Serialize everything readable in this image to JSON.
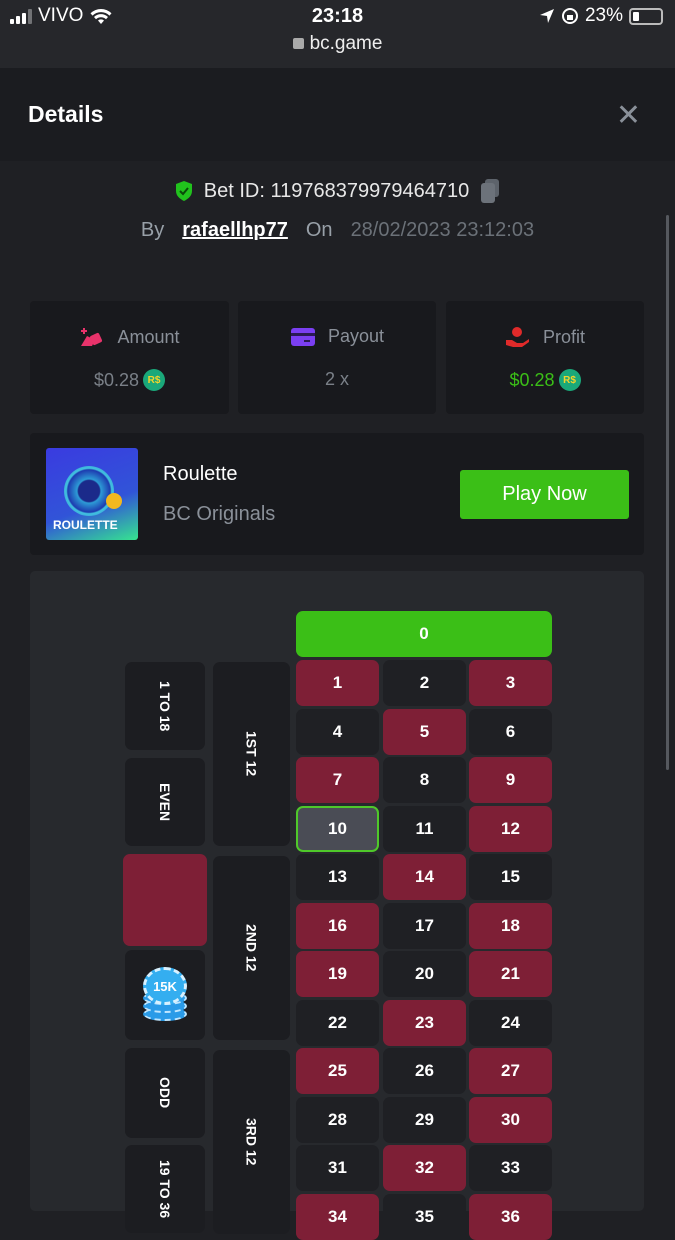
{
  "status_bar": {
    "carrier": "VIVO",
    "time": "23:18",
    "battery": "23%",
    "url": "bc.game",
    "icons": [
      "signal-icon",
      "wifi-icon",
      "location-icon",
      "rotation-lock-icon",
      "battery-icon",
      "lock-icon"
    ]
  },
  "header": {
    "title": "Details",
    "close_icon": "close-icon"
  },
  "bet": {
    "id_label": "Bet ID: 119768379979464710",
    "by_label": "By",
    "user": "rafaellhp77",
    "on_label": "On",
    "date": "28/02/2023 23:12:03"
  },
  "stats": [
    {
      "label": "Amount",
      "value": "$0.28",
      "currency": "R$",
      "icon": "bet-amount-icon",
      "color": "#e8336b",
      "value_color": "#7a8088"
    },
    {
      "label": "Payout",
      "value": "2 x",
      "icon": "card-icon",
      "color": "#7b3ff2",
      "value_color": "#7a8088"
    },
    {
      "label": "Profit",
      "value": "$0.28",
      "currency": "R$",
      "icon": "profit-hand-icon",
      "color": "#e02a2a",
      "value_color": "#3bbf17"
    }
  ],
  "game": {
    "name": "Roulette",
    "provider": "BC Originals",
    "thumb_text": "ROULETTE",
    "play_label": "Play Now"
  },
  "roulette": {
    "zero": "0",
    "numbers": [
      [
        1,
        2,
        3
      ],
      [
        4,
        5,
        6
      ],
      [
        7,
        8,
        9
      ],
      [
        10,
        11,
        12
      ],
      [
        13,
        14,
        15
      ],
      [
        16,
        17,
        18
      ],
      [
        19,
        20,
        21
      ],
      [
        22,
        23,
        24
      ],
      [
        25,
        26,
        27
      ],
      [
        28,
        29,
        30
      ],
      [
        31,
        32,
        33
      ],
      [
        34,
        35,
        36
      ]
    ],
    "red_numbers": [
      1,
      3,
      5,
      7,
      9,
      12,
      14,
      16,
      18,
      19,
      21,
      23,
      25,
      27,
      30,
      32,
      34,
      36
    ],
    "selected_number": 10,
    "dozens": [
      "1ST 12",
      "2ND 12",
      "3RD 12"
    ],
    "outside": [
      "1 TO 18",
      "EVEN",
      "",
      "",
      "ODD",
      "19 TO 36"
    ],
    "chip_label": "15K",
    "colors": {
      "red": "#7e1f36",
      "black": "#1f2024",
      "green": "#3bbf17"
    }
  }
}
